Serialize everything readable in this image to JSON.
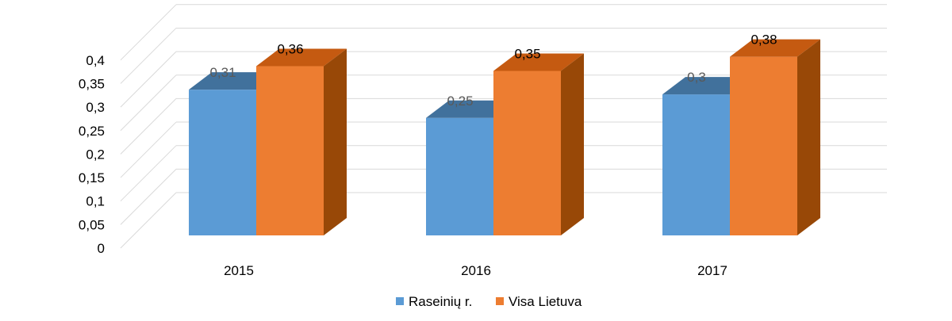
{
  "chart_data": {
    "type": "bar",
    "style": "3d-clustered-column",
    "categories": [
      "2015",
      "2016",
      "2017"
    ],
    "series": [
      {
        "name": "Raseinių r.",
        "values": [
          0.31,
          0.25,
          0.3
        ],
        "labels": [
          "0,31",
          "0,25",
          "0,3"
        ],
        "color": "#5b9bd5",
        "top_color": "#41719c",
        "label_color": "#595959"
      },
      {
        "name": "Visa Lietuva",
        "values": [
          0.36,
          0.35,
          0.38
        ],
        "labels": [
          "0,36",
          "0,35",
          "0,38"
        ],
        "color": "#ed7d31",
        "top_color": "#c55a11",
        "side_color": "#984807",
        "label_color": "#000000"
      }
    ],
    "y_ticks": [
      "0",
      "0,05",
      "0,1",
      "0,15",
      "0,2",
      "0,25",
      "0,3",
      "0,35",
      "0,4"
    ],
    "ylim": [
      0,
      0.45
    ],
    "grid": true,
    "legend_position": "bottom",
    "title": "",
    "xlabel": "",
    "ylabel": ""
  }
}
